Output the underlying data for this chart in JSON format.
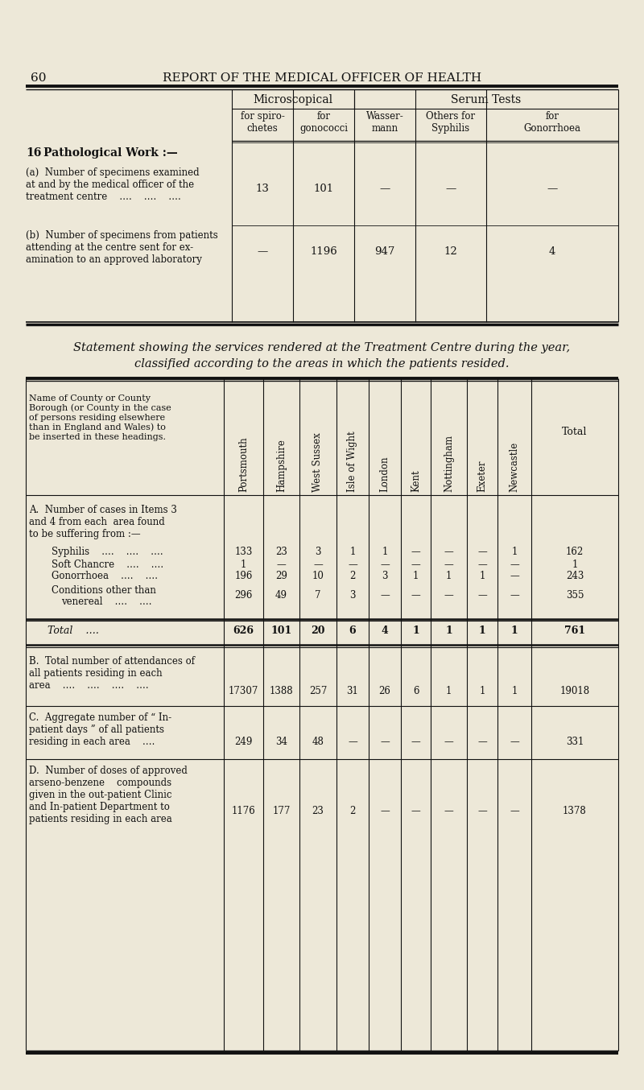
{
  "bg_color": "#ede8d8",
  "page_number": "60",
  "page_header": "REPORT OF THE MEDICAL OFFICER OF HEALTH",
  "table1": {
    "col_group1_header": "Microscopical",
    "col_group2_header": "Serum Tests",
    "col_headers": [
      "for spiro-\nchetes",
      "for\ngonococci",
      "Wasser-\nmann",
      "Others for\nSyphilis",
      "for\nGonorrhoea"
    ],
    "row16_header": "16",
    "row16_label": "Pathological Work :—",
    "row_a_label": "(a)  Number of specimens examined\nat and by the medical officer of the\ntreatment centre    ….    ….    ….",
    "row_a_data": [
      "13",
      "101",
      "—",
      "—",
      "—"
    ],
    "row_b_label": "(b)  Number of specimens from patients\nattending at the centre sent for ex-\namination to an approved laboratory",
    "row_b_data": [
      "—",
      "1196",
      "947",
      "12",
      "4"
    ]
  },
  "statement_title_line1": "Statement showing the services rendered at the Treatment Centre during the year,",
  "statement_title_line2": "classified according to the areas in which the patients resided.",
  "table2": {
    "col_header_label": "Name of County or County\nBorough (or County in the case\nof persons residing elsewhere\nthan in England and Wales) to\nbe inserted in these headings.",
    "col_headers": [
      "Portsmouth",
      "Hampshire",
      "West Sussex",
      "Isle of Wight",
      "London",
      "Kent",
      "Nottingham",
      "Exeter",
      "Newcastle",
      "Total"
    ],
    "section_A_header": "A.  Number of cases in Items 3\nand 4 from each  area found\nto be suffering from :—",
    "rows_A": [
      {
        "label": "Syphilis    ….    ….    ….",
        "data": [
          "133",
          "23",
          "3",
          "1",
          "1",
          "—",
          "—",
          "—",
          "1",
          "162"
        ]
      },
      {
        "label": "Soft Chancre    ….    ….",
        "data": [
          "1",
          "—",
          "—",
          "—",
          "—",
          "—",
          "—",
          "—",
          "—",
          "1"
        ]
      },
      {
        "label": "Gonorrhoea    ….    ….",
        "data": [
          "196",
          "29",
          "10",
          "2",
          "3",
          "1",
          "1",
          "1",
          "—",
          "243"
        ]
      },
      {
        "label": "Conditions other than\nvenereal    ….    ….",
        "data": [
          "296",
          "49",
          "7",
          "3",
          "—",
          "—",
          "—",
          "—",
          "—",
          "355"
        ]
      }
    ],
    "total_row": {
      "label": "Total    ….",
      "data": [
        "626",
        "101",
        "20",
        "6",
        "4",
        "1",
        "1",
        "1",
        "1",
        "761"
      ]
    },
    "section_B": {
      "label": "B.  Total number of attendances of\nall patients residing in each\narea    ….    ….    ….    ….",
      "data": [
        "17307",
        "1388",
        "257",
        "31",
        "26",
        "6",
        "1",
        "1",
        "1",
        "19018"
      ]
    },
    "section_C": {
      "label": "C.  Aggregate number of “ In-\npatient days ” of all patients\nresiding in each area    ….",
      "data": [
        "249",
        "34",
        "48",
        "—",
        "—",
        "—",
        "—",
        "—",
        "—",
        "331"
      ]
    },
    "section_D": {
      "label": "D.  Number of doses of approved\narseno-benzene    compounds\ngiven in the out-patient Clinic\nand In-patient Department to\npatients residing in each area",
      "data": [
        "1176",
        "177",
        "23",
        "2",
        "—",
        "—",
        "—",
        "—",
        "—",
        "1378"
      ]
    }
  }
}
